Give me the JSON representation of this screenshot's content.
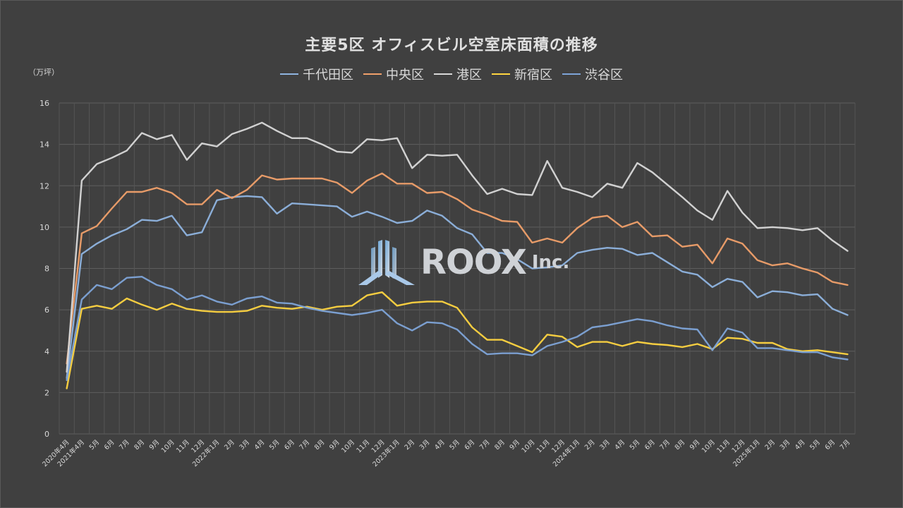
{
  "chart_data": {
    "type": "line",
    "title": "主要5区 オフィスビル空室床面積の推移",
    "ylabel": "（万坪）",
    "ylim": [
      0,
      16
    ],
    "yticks": [
      0,
      2,
      4,
      6,
      8,
      10,
      12,
      14,
      16
    ],
    "grid": true,
    "legend_position": "top",
    "categories": [
      "2020年4月",
      "2021年4月",
      "5月",
      "6月",
      "7月",
      "8月",
      "9月",
      "10月",
      "11月",
      "12月",
      "2022年1月",
      "2月",
      "3月",
      "4月",
      "5月",
      "6月",
      "7月",
      "8月",
      "9月",
      "10月",
      "11月",
      "12月",
      "2023年1月",
      "2月",
      "3月",
      "4月",
      "5月",
      "6月",
      "7月",
      "8月",
      "9月",
      "10月",
      "11月",
      "12月",
      "2024年1月",
      "2月",
      "3月",
      "4月",
      "5月",
      "6月",
      "7月",
      "8月",
      "9月",
      "10月",
      "11月",
      "12月",
      "2025年1月",
      "2月",
      "3月",
      "4月",
      "5月",
      "6月",
      "7月"
    ],
    "series": [
      {
        "name": "千代田区",
        "color": "#8fb4e0",
        "values": [
          2.7,
          8.7,
          9.2,
          9.6,
          9.9,
          10.35,
          10.3,
          10.55,
          9.6,
          9.75,
          11.3,
          11.45,
          11.5,
          11.45,
          10.65,
          11.15,
          11.1,
          11.05,
          11.0,
          10.5,
          10.75,
          10.5,
          10.2,
          10.3,
          10.8,
          10.55,
          9.95,
          9.65,
          8.75,
          8.75,
          8.45,
          8.0,
          8.05,
          8.15,
          8.75,
          8.9,
          9.0,
          8.95,
          8.65,
          8.75,
          8.3,
          7.85,
          7.7,
          7.1,
          7.5,
          7.35,
          6.6,
          6.9,
          6.85,
          6.7,
          6.75,
          6.05,
          5.75
        ]
      },
      {
        "name": "中央区",
        "color": "#f0a06a",
        "values": [
          3.4,
          9.7,
          10.05,
          10.9,
          11.7,
          11.7,
          11.9,
          11.65,
          11.1,
          11.1,
          11.8,
          11.4,
          11.8,
          12.5,
          12.3,
          12.35,
          12.35,
          12.35,
          12.15,
          11.65,
          12.25,
          12.6,
          12.1,
          12.1,
          11.65,
          11.7,
          11.35,
          10.85,
          10.6,
          10.3,
          10.25,
          9.25,
          9.45,
          9.25,
          9.95,
          10.45,
          10.55,
          10.0,
          10.25,
          9.55,
          9.6,
          9.05,
          9.15,
          8.25,
          9.45,
          9.2,
          8.4,
          8.15,
          8.25,
          8.0,
          7.8,
          7.35,
          7.2
        ]
      },
      {
        "name": "港区",
        "color": "#d9d9d9",
        "values": [
          3.0,
          12.25,
          13.05,
          13.35,
          13.7,
          14.55,
          14.25,
          14.45,
          13.25,
          14.05,
          13.9,
          14.5,
          14.75,
          15.05,
          14.65,
          14.3,
          14.3,
          14.0,
          13.65,
          13.6,
          14.25,
          14.2,
          14.3,
          12.85,
          13.5,
          13.45,
          13.5,
          12.5,
          11.6,
          11.85,
          11.6,
          11.55,
          13.2,
          11.9,
          11.7,
          11.45,
          12.1,
          11.9,
          13.1,
          12.65,
          12.05,
          11.45,
          10.8,
          10.35,
          11.75,
          10.7,
          9.95,
          10.0,
          9.95,
          9.85,
          9.95,
          9.35,
          8.85
        ]
      },
      {
        "name": "新宿区",
        "color": "#ffd540",
        "values": [
          2.2,
          6.05,
          6.2,
          6.05,
          6.55,
          6.25,
          6.0,
          6.3,
          6.05,
          5.95,
          5.9,
          5.9,
          5.95,
          6.2,
          6.1,
          6.05,
          6.15,
          6.0,
          6.15,
          6.2,
          6.7,
          6.85,
          6.2,
          6.35,
          6.4,
          6.4,
          6.1,
          5.15,
          4.55,
          4.55,
          4.25,
          3.95,
          4.8,
          4.7,
          4.2,
          4.45,
          4.45,
          4.25,
          4.45,
          4.35,
          4.3,
          4.2,
          4.35,
          4.1,
          4.65,
          4.6,
          4.4,
          4.4,
          4.1,
          4.0,
          4.05,
          3.95,
          3.85
        ]
      },
      {
        "name": "渋谷区",
        "color": "#7ea4d8",
        "values": [
          2.6,
          6.5,
          7.2,
          7.0,
          7.55,
          7.6,
          7.2,
          7.0,
          6.5,
          6.7,
          6.4,
          6.25,
          6.55,
          6.65,
          6.35,
          6.3,
          6.1,
          5.95,
          5.85,
          5.75,
          5.85,
          6.0,
          5.35,
          5.0,
          5.4,
          5.35,
          5.05,
          4.35,
          3.85,
          3.9,
          3.9,
          3.8,
          4.25,
          4.45,
          4.7,
          5.15,
          5.25,
          5.4,
          5.55,
          5.45,
          5.25,
          5.1,
          5.05,
          4.05,
          5.1,
          4.9,
          4.15,
          4.15,
          4.05,
          3.95,
          3.95,
          3.7,
          3.6
        ]
      }
    ]
  },
  "watermark": {
    "brand": "ROOX",
    "suffix": "Inc."
  }
}
